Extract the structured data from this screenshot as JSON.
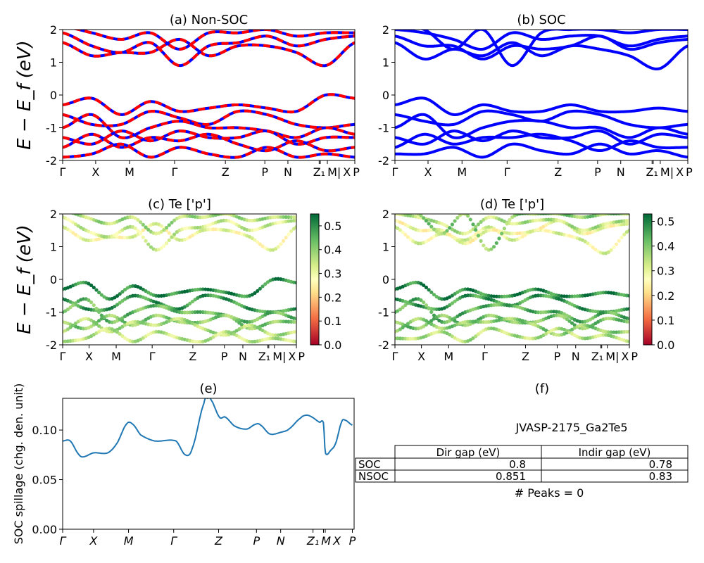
{
  "chart_data": [
    {
      "id": "a",
      "type": "line",
      "title": "(a) Non-SOC",
      "ylabel": "E − E_f (eV)",
      "ylim": [
        -2,
        2
      ],
      "yticks": [
        -2,
        -1,
        0,
        1,
        2
      ],
      "xticks": [
        {
          "label": "Γ",
          "k": 0
        },
        {
          "label": "X",
          "k": 0.113
        },
        {
          "label": "M",
          "k": 0.229
        },
        {
          "label": "Γ",
          "k": 0.383
        },
        {
          "label": "Z",
          "k": 0.557
        },
        {
          "label": "P",
          "k": 0.692
        },
        {
          "label": "N",
          "k": 0.771
        },
        {
          "label": "Z₁",
          "k": 0.878
        },
        {
          "label": "M|",
          "k": 0.882
        },
        {
          "label": "X",
          "k": 0.906
        },
        {
          "label": "P",
          "k": 1
        }
      ],
      "style": "red-blue-dashed",
      "k": [
        0,
        0.1,
        0.2,
        0.3,
        0.4,
        0.5,
        0.6,
        0.7,
        0.8,
        0.9,
        1.0
      ],
      "bands": [
        [
          -0.3,
          -0.1,
          -0.6,
          -0.2,
          -0.5,
          -0.4,
          -0.3,
          -0.4,
          -0.5,
          0.0,
          -0.1
        ],
        [
          -0.6,
          -0.9,
          -0.9,
          -0.5,
          -0.7,
          -0.9,
          -0.5,
          -0.6,
          -0.9,
          -1.0,
          -0.9
        ],
        [
          -1.0,
          -0.6,
          -1.3,
          -1.0,
          -0.8,
          -1.0,
          -1.0,
          -1.1,
          -1.3,
          -1.0,
          -1.2
        ],
        [
          -1.3,
          -1.5,
          -1.1,
          -1.4,
          -1.1,
          -1.3,
          -1.3,
          -1.1,
          -1.5,
          -1.3,
          -1.3
        ],
        [
          -1.6,
          -1.2,
          -1.6,
          -1.3,
          -1.4,
          -1.2,
          -1.5,
          -1.7,
          -1.4,
          -1.7,
          -1.6
        ],
        [
          -1.9,
          -1.8,
          -1.5,
          -1.9,
          -1.6,
          -1.8,
          -1.9,
          -1.6,
          -1.9,
          -1.8,
          -1.9
        ],
        [
          1.6,
          1.2,
          1.3,
          1.3,
          1.7,
          1.2,
          1.5,
          1.5,
          1.3,
          0.9,
          1.6
        ],
        [
          1.9,
          1.5,
          1.3,
          1.6,
          0.9,
          1.5,
          1.6,
          1.8,
          1.5,
          1.7,
          1.8
        ],
        [
          2.1,
          1.9,
          1.7,
          1.9,
          1.4,
          1.9,
          1.9,
          2.0,
          1.8,
          1.9,
          1.9
        ]
      ]
    },
    {
      "id": "b",
      "type": "line",
      "title": "(b) SOC",
      "ylim": [
        -2,
        2
      ],
      "yticks": [
        -2,
        -1,
        0,
        1,
        2
      ],
      "style": "blue",
      "k": [
        0,
        0.1,
        0.2,
        0.3,
        0.4,
        0.5,
        0.6,
        0.7,
        0.8,
        0.9,
        1.0
      ],
      "bands": [
        [
          -0.3,
          -0.1,
          -0.6,
          -0.3,
          -0.5,
          -0.5,
          -0.3,
          -0.5,
          -0.5,
          -0.4,
          -0.5
        ],
        [
          -0.6,
          -0.8,
          -0.9,
          -0.5,
          -0.6,
          -0.8,
          -0.5,
          -0.6,
          -0.9,
          -1.0,
          -0.9
        ],
        [
          -1.0,
          -0.6,
          -1.3,
          -1.0,
          -0.8,
          -0.8,
          -1.0,
          -1.0,
          -1.3,
          -1.0,
          -1.2
        ],
        [
          -1.3,
          -1.5,
          -1.1,
          -1.4,
          -1.1,
          -1.3,
          -1.3,
          -1.1,
          -1.5,
          -1.2,
          -1.3
        ],
        [
          -1.6,
          -1.2,
          -1.5,
          -1.3,
          -1.3,
          -1.2,
          -1.4,
          -1.7,
          -1.4,
          -1.6,
          -1.6
        ],
        [
          -1.8,
          -1.8,
          -1.6,
          -1.9,
          -1.5,
          -1.7,
          -1.8,
          -1.5,
          -1.8,
          -1.7,
          -1.9
        ],
        [
          1.6,
          1.1,
          1.4,
          1.2,
          1.6,
          1.2,
          1.5,
          1.4,
          1.2,
          0.8,
          1.5
        ],
        [
          1.8,
          1.5,
          1.5,
          1.1,
          1.5,
          1.4,
          1.5,
          1.8,
          1.4,
          1.6,
          1.7
        ],
        [
          2.0,
          1.9,
          1.7,
          1.4,
          1.9,
          1.7,
          1.8,
          1.8,
          1.5,
          1.7,
          1.8
        ],
        [
          2.1,
          2.0,
          1.4,
          2.0,
          0.9,
          1.9,
          2.0,
          2.0,
          1.9,
          2.0,
          2.0
        ]
      ]
    },
    {
      "id": "c",
      "type": "scatter",
      "title": "(c)  Te ['p']",
      "ylabel": "E − E_f (eV)",
      "ylim": [
        -2,
        2
      ],
      "yticks": [
        -2,
        -1,
        0,
        1,
        2
      ],
      "colormap": "RdYlGn",
      "clim": [
        0,
        0.55
      ],
      "cticks": [
        0.0,
        0.1,
        0.2,
        0.3,
        0.4,
        0.5
      ],
      "band_source": "a",
      "weights": [
        0.52,
        0.5,
        0.45,
        0.42,
        0.38,
        0.36,
        0.3,
        0.34,
        0.38
      ]
    },
    {
      "id": "d",
      "type": "scatter",
      "title": "(d) Te ['p']",
      "ylim": [
        -2,
        2
      ],
      "yticks": [
        -2,
        -1,
        0,
        1,
        2
      ],
      "colormap": "RdYlGn",
      "clim": [
        0,
        0.53
      ],
      "cticks": [
        0.0,
        0.1,
        0.2,
        0.3,
        0.4,
        0.5
      ],
      "band_source": "b",
      "weights": [
        0.5,
        0.48,
        0.45,
        0.42,
        0.4,
        0.36,
        0.3,
        0.28,
        0.35,
        0.4
      ]
    },
    {
      "id": "e",
      "type": "line",
      "title": "(e)",
      "ylabel": "SOC spillage (chg. den. unit)",
      "ylim": [
        0,
        0.132
      ],
      "yticks": [
        "0.00",
        "0.05",
        "0.10"
      ],
      "xticks": [
        {
          "label": "Γ",
          "k": 0
        },
        {
          "label": "X",
          "k": 0.106
        },
        {
          "label": "M",
          "k": 0.226
        },
        {
          "label": "Γ",
          "k": 0.381
        },
        {
          "label": "Z",
          "k": 0.535
        },
        {
          "label": "P",
          "k": 0.665
        },
        {
          "label": "N",
          "k": 0.748
        },
        {
          "label": "Z₁",
          "k": 0.859
        },
        {
          "label": "M",
          "k": 0.895
        },
        {
          "label": "X",
          "k": 0.901
        },
        {
          "label": "P",
          "k": 0.994
        }
      ],
      "color": "#1f77b4",
      "x": [
        0,
        0.026,
        0.054,
        0.07,
        0.106,
        0.155,
        0.187,
        0.219,
        0.24,
        0.268,
        0.316,
        0.389,
        0.421,
        0.445,
        0.485,
        0.498,
        0.51,
        0.538,
        0.558,
        0.59,
        0.631,
        0.663,
        0.679,
        0.711,
        0.752,
        0.776,
        0.816,
        0.836,
        0.856,
        0.881,
        0.895,
        0.901,
        0.921,
        0.937,
        0.957,
        0.969,
        0.994
      ],
      "y": [
        0.089,
        0.089,
        0.076,
        0.073,
        0.077,
        0.077,
        0.087,
        0.106,
        0.106,
        0.095,
        0.089,
        0.089,
        0.075,
        0.082,
        0.127,
        0.132,
        0.13,
        0.113,
        0.113,
        0.104,
        0.101,
        0.106,
        0.105,
        0.096,
        0.098,
        0.101,
        0.112,
        0.115,
        0.113,
        0.108,
        0.107,
        0.077,
        0.08,
        0.087,
        0.108,
        0.11,
        0.105
      ]
    },
    {
      "id": "f",
      "type": "table",
      "title": "(f)",
      "subtitle": "JVASP-2175_Ga2Te5",
      "columns": [
        "",
        "Dir gap (eV)",
        "Indir gap (eV)"
      ],
      "rows": [
        [
          "SOC",
          "0.8",
          "0.78"
        ],
        [
          "NSOC",
          "0.851",
          "0.83"
        ]
      ],
      "footer": "# Peaks = 0"
    }
  ]
}
